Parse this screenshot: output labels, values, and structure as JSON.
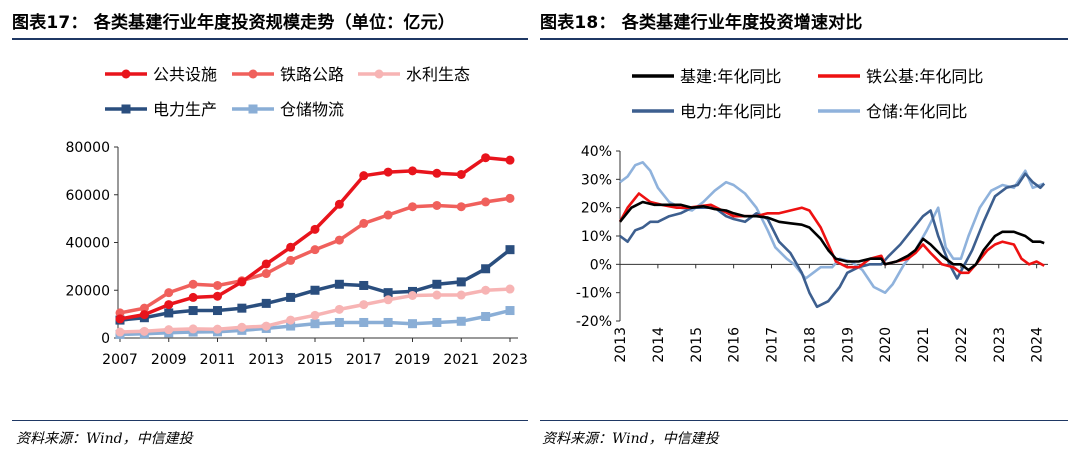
{
  "panels": [
    {
      "title": "图表17：  各类基建行业年度投资规模走势（单位：亿元）",
      "source": "资料来源：Wind，中信建投"
    },
    {
      "title": "图表18：  各类基建行业年度投资增速对比",
      "source": "资料来源：Wind，中信建投"
    }
  ],
  "chart_data": [
    {
      "type": "line",
      "title": "图表17：  各类基建行业年度投资规模走势（单位：亿元）",
      "legend_position": "top",
      "x": [
        2007,
        2008,
        2009,
        2010,
        2011,
        2012,
        2013,
        2014,
        2015,
        2016,
        2017,
        2018,
        2019,
        2020,
        2021,
        2022,
        2023
      ],
      "xticks": [
        "2007",
        "2009",
        "2011",
        "2013",
        "2015",
        "2017",
        "2019",
        "2021",
        "2023"
      ],
      "yticks": [
        "0",
        "20000",
        "40000",
        "60000",
        "80000"
      ],
      "ylim": [
        0,
        80000
      ],
      "grid": false,
      "series": [
        {
          "name": "公共设施",
          "color": "#e8141c",
          "marker": "circle",
          "values": [
            8000,
            9800,
            14000,
            17000,
            17500,
            23500,
            31000,
            38000,
            45500,
            56000,
            68000,
            69500,
            70000,
            69000,
            68500,
            75500,
            74500
          ]
        },
        {
          "name": "铁路公路",
          "color": "#f0605c",
          "marker": "circle",
          "values": [
            10500,
            12500,
            19000,
            22500,
            22000,
            24000,
            27000,
            32500,
            37000,
            41000,
            48000,
            51500,
            55000,
            55500,
            55000,
            57000,
            58500
          ]
        },
        {
          "name": "水利生态",
          "color": "#f7b4b4",
          "marker": "circle",
          "values": [
            2500,
            2800,
            3500,
            3800,
            3700,
            4500,
            5000,
            7500,
            9500,
            12000,
            14000,
            16000,
            17800,
            18000,
            18000,
            20000,
            20500
          ]
        },
        {
          "name": "电力生产",
          "color": "#2a4e7e",
          "marker": "square",
          "values": [
            7500,
            8500,
            10500,
            11500,
            11500,
            12500,
            14500,
            17000,
            20000,
            22500,
            22000,
            19000,
            19500,
            22500,
            23500,
            29000,
            37000
          ]
        },
        {
          "name": "仓储物流",
          "color": "#8aaed6",
          "marker": "square",
          "values": [
            1500,
            1800,
            2200,
            2500,
            2600,
            3200,
            4000,
            5000,
            6000,
            6500,
            6500,
            6500,
            6000,
            6500,
            7000,
            9000,
            11500
          ]
        }
      ]
    },
    {
      "type": "line",
      "title": "图表18：  各类基建行业年度投资增速对比",
      "legend_position": "top",
      "xlim": [
        2013,
        2024.3
      ],
      "xticks": [
        "2013",
        "2014",
        "2015",
        "2016",
        "2017",
        "2018",
        "2019",
        "2020",
        "2021",
        "2022",
        "2023",
        "2024"
      ],
      "yticks": [
        "-20%",
        "-10%",
        "0%",
        "10%",
        "20%",
        "30%",
        "40%"
      ],
      "ylim": [
        -20,
        40
      ],
      "y_unit": "%",
      "grid": false,
      "series": [
        {
          "name": "基建:年化同比",
          "color": "#000000",
          "points": [
            [
              2013.0,
              15
            ],
            [
              2013.3,
              20
            ],
            [
              2013.6,
              22
            ],
            [
              2013.9,
              21
            ],
            [
              2014.2,
              21
            ],
            [
              2014.6,
              21
            ],
            [
              2014.9,
              20
            ],
            [
              2015.2,
              20.5
            ],
            [
              2015.5,
              19.5
            ],
            [
              2015.8,
              19
            ],
            [
              2016.0,
              18
            ],
            [
              2016.3,
              17
            ],
            [
              2016.6,
              17
            ],
            [
              2016.9,
              16.5
            ],
            [
              2017.2,
              15
            ],
            [
              2017.5,
              14.5
            ],
            [
              2017.8,
              14
            ],
            [
              2018.0,
              13
            ],
            [
              2018.3,
              9
            ],
            [
              2018.5,
              5
            ],
            [
              2018.7,
              2
            ],
            [
              2019.0,
              1
            ],
            [
              2019.3,
              1
            ],
            [
              2019.6,
              2
            ],
            [
              2019.9,
              2
            ],
            [
              2020.0,
              0
            ],
            [
              2020.3,
              1
            ],
            [
              2020.6,
              3
            ],
            [
              2020.8,
              5
            ],
            [
              2021.0,
              9
            ],
            [
              2021.2,
              7
            ],
            [
              2021.5,
              3
            ],
            [
              2021.8,
              0
            ],
            [
              2022.0,
              0
            ],
            [
              2022.2,
              -2
            ],
            [
              2022.4,
              0
            ],
            [
              2022.6,
              5
            ],
            [
              2022.9,
              10
            ],
            [
              2023.1,
              11.5
            ],
            [
              2023.4,
              11.5
            ],
            [
              2023.7,
              10
            ],
            [
              2023.9,
              8
            ],
            [
              2024.1,
              8
            ],
            [
              2024.2,
              7.5
            ]
          ]
        },
        {
          "name": "铁公基:年化同比",
          "color": "#ee1111",
          "points": [
            [
              2013.0,
              15
            ],
            [
              2013.2,
              20
            ],
            [
              2013.5,
              25
            ],
            [
              2013.8,
              22
            ],
            [
              2014.1,
              21
            ],
            [
              2014.5,
              20
            ],
            [
              2014.8,
              20
            ],
            [
              2015.1,
              20.5
            ],
            [
              2015.4,
              21
            ],
            [
              2015.7,
              19
            ],
            [
              2016.0,
              17
            ],
            [
              2016.3,
              17
            ],
            [
              2016.6,
              17
            ],
            [
              2016.9,
              18
            ],
            [
              2017.2,
              18
            ],
            [
              2017.5,
              19
            ],
            [
              2017.8,
              20
            ],
            [
              2018.0,
              19
            ],
            [
              2018.3,
              13
            ],
            [
              2018.5,
              7
            ],
            [
              2018.7,
              1
            ],
            [
              2019.0,
              -1
            ],
            [
              2019.3,
              -1
            ],
            [
              2019.6,
              2
            ],
            [
              2019.9,
              3
            ],
            [
              2020.0,
              0
            ],
            [
              2020.3,
              1
            ],
            [
              2020.6,
              2
            ],
            [
              2020.8,
              4
            ],
            [
              2021.0,
              7
            ],
            [
              2021.2,
              4
            ],
            [
              2021.5,
              0
            ],
            [
              2021.8,
              -1
            ],
            [
              2022.0,
              -3
            ],
            [
              2022.2,
              -3
            ],
            [
              2022.4,
              0
            ],
            [
              2022.7,
              5
            ],
            [
              2022.9,
              7
            ],
            [
              2023.1,
              8
            ],
            [
              2023.4,
              7
            ],
            [
              2023.6,
              2
            ],
            [
              2023.8,
              0
            ],
            [
              2024.0,
              1
            ],
            [
              2024.2,
              -0.5
            ]
          ]
        },
        {
          "name": "电力:年化同比",
          "color": "#3d5f8f",
          "points": [
            [
              2013.0,
              10
            ],
            [
              2013.2,
              8
            ],
            [
              2013.4,
              12
            ],
            [
              2013.6,
              13
            ],
            [
              2013.8,
              15
            ],
            [
              2014.0,
              15
            ],
            [
              2014.3,
              17
            ],
            [
              2014.6,
              18
            ],
            [
              2014.9,
              20
            ],
            [
              2015.2,
              20
            ],
            [
              2015.5,
              20
            ],
            [
              2015.8,
              17
            ],
            [
              2016.0,
              16
            ],
            [
              2016.3,
              15
            ],
            [
              2016.6,
              18
            ],
            [
              2016.9,
              16
            ],
            [
              2017.2,
              8
            ],
            [
              2017.5,
              4
            ],
            [
              2017.8,
              -3
            ],
            [
              2018.0,
              -10
            ],
            [
              2018.2,
              -15
            ],
            [
              2018.5,
              -13
            ],
            [
              2018.8,
              -8
            ],
            [
              2019.0,
              -3
            ],
            [
              2019.3,
              -1
            ],
            [
              2019.6,
              0
            ],
            [
              2019.9,
              0
            ],
            [
              2020.1,
              3
            ],
            [
              2020.4,
              7
            ],
            [
              2020.7,
              12
            ],
            [
              2021.0,
              17
            ],
            [
              2021.2,
              19
            ],
            [
              2021.4,
              10
            ],
            [
              2021.7,
              0
            ],
            [
              2021.9,
              -5
            ],
            [
              2022.1,
              0
            ],
            [
              2022.3,
              5
            ],
            [
              2022.6,
              15
            ],
            [
              2022.9,
              24
            ],
            [
              2023.2,
              27
            ],
            [
              2023.5,
              28
            ],
            [
              2023.7,
              32
            ],
            [
              2023.9,
              29
            ],
            [
              2024.1,
              27
            ],
            [
              2024.2,
              28.5
            ]
          ]
        },
        {
          "name": "仓储:年化同比",
          "color": "#8fb2dc",
          "points": [
            [
              2013.0,
              29
            ],
            [
              2013.2,
              31
            ],
            [
              2013.4,
              35
            ],
            [
              2013.6,
              36
            ],
            [
              2013.8,
              33
            ],
            [
              2014.0,
              27
            ],
            [
              2014.3,
              22
            ],
            [
              2014.6,
              20
            ],
            [
              2014.9,
              19
            ],
            [
              2015.2,
              22
            ],
            [
              2015.5,
              26
            ],
            [
              2015.8,
              29
            ],
            [
              2016.0,
              28
            ],
            [
              2016.3,
              25
            ],
            [
              2016.6,
              20
            ],
            [
              2016.9,
              12
            ],
            [
              2017.1,
              6
            ],
            [
              2017.4,
              2
            ],
            [
              2017.6,
              0
            ],
            [
              2017.9,
              -5
            ],
            [
              2018.1,
              -3
            ],
            [
              2018.3,
              -1
            ],
            [
              2018.6,
              -1
            ],
            [
              2018.8,
              2
            ],
            [
              2019.1,
              1
            ],
            [
              2019.4,
              -2
            ],
            [
              2019.7,
              -8
            ],
            [
              2020.0,
              -10
            ],
            [
              2020.2,
              -7
            ],
            [
              2020.5,
              0
            ],
            [
              2020.8,
              5
            ],
            [
              2021.1,
              12
            ],
            [
              2021.4,
              20
            ],
            [
              2021.6,
              6
            ],
            [
              2021.8,
              2
            ],
            [
              2022.0,
              2
            ],
            [
              2022.2,
              10
            ],
            [
              2022.5,
              20
            ],
            [
              2022.8,
              26
            ],
            [
              2023.1,
              28
            ],
            [
              2023.4,
              27
            ],
            [
              2023.7,
              33
            ],
            [
              2023.9,
              27
            ],
            [
              2024.1,
              28
            ],
            [
              2024.2,
              28.5
            ]
          ]
        }
      ]
    }
  ]
}
